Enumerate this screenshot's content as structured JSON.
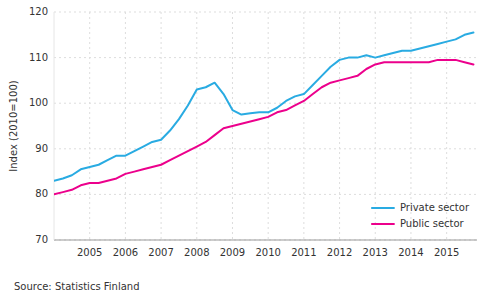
{
  "chart_data": {
    "type": "line",
    "ylabel": "Index (2010=100)",
    "annotations": [
      "Source: Statistics Finland"
    ],
    "x": [
      2004.0,
      2004.25,
      2004.5,
      2004.75,
      2005.0,
      2005.25,
      2005.5,
      2005.75,
      2006.0,
      2006.25,
      2006.5,
      2006.75,
      2007.0,
      2007.25,
      2007.5,
      2007.75,
      2008.0,
      2008.25,
      2008.5,
      2008.75,
      2009.0,
      2009.25,
      2009.5,
      2009.75,
      2010.0,
      2010.25,
      2010.5,
      2010.75,
      2011.0,
      2011.25,
      2011.5,
      2011.75,
      2012.0,
      2012.25,
      2012.5,
      2012.75,
      2013.0,
      2013.25,
      2013.5,
      2013.75,
      2014.0,
      2014.25,
      2014.5,
      2014.75,
      2015.0,
      2015.25,
      2015.5,
      2015.75
    ],
    "series": [
      {
        "name": "Private sector",
        "color": "#29ABE2",
        "values": [
          83.0,
          83.5,
          84.2,
          85.5,
          86.0,
          86.5,
          87.5,
          88.5,
          88.5,
          89.5,
          90.5,
          91.5,
          92.0,
          94.0,
          96.5,
          99.5,
          103.0,
          103.5,
          104.5,
          102.0,
          98.5,
          97.5,
          97.8,
          98.0,
          98.0,
          99.0,
          100.5,
          101.5,
          102.0,
          104.0,
          106.0,
          108.0,
          109.5,
          110.0,
          110.0,
          110.5,
          110.0,
          110.5,
          111.0,
          111.5,
          111.5,
          112.0,
          112.5,
          113.0,
          113.5,
          114.0,
          115.0,
          115.5
        ]
      },
      {
        "name": "Public sector",
        "color": "#EC008C",
        "values": [
          80.0,
          80.5,
          81.0,
          82.0,
          82.5,
          82.5,
          83.0,
          83.5,
          84.5,
          85.0,
          85.5,
          86.0,
          86.5,
          87.5,
          88.5,
          89.5,
          90.5,
          91.5,
          93.0,
          94.5,
          95.0,
          95.5,
          96.0,
          96.5,
          97.0,
          98.0,
          98.5,
          99.5,
          100.5,
          102.0,
          103.5,
          104.5,
          105.0,
          105.5,
          106.0,
          107.5,
          108.5,
          109.0,
          109.0,
          109.0,
          109.0,
          109.0,
          109.0,
          109.5,
          109.5,
          109.5,
          109.0,
          108.5
        ]
      }
    ],
    "xlim": [
      2004.0,
      2015.85
    ],
    "ylim": [
      70,
      120
    ],
    "xticks": [
      2005,
      2006,
      2007,
      2008,
      2009,
      2010,
      2011,
      2012,
      2013,
      2014,
      2015
    ],
    "yticks": [
      70,
      80,
      90,
      100,
      110,
      120
    ],
    "grid": true,
    "legend": "lower right"
  }
}
